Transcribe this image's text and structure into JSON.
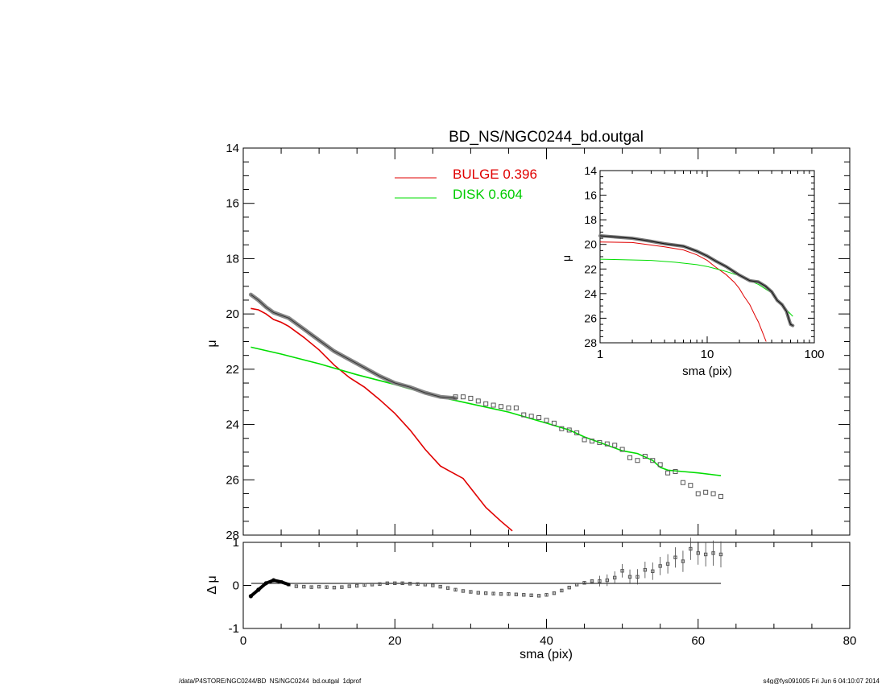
{
  "title": "BD_NS/NGC0244_bd.outgal",
  "footer_left": "/data/P4STORE/NGC0244/BD_NS/NGC0244_bd.outgal_1dprof",
  "footer_right": "s4g@fys091005  Fri Jun  6 04:10:07 2014",
  "legend": {
    "bulge_label": "BULGE  0.396",
    "disk_label": "DISK  0.604"
  },
  "colors": {
    "bulge": "#e00000",
    "disk": "#00dd00",
    "data": "#555555",
    "axes": "#000000"
  },
  "chart_data": [
    {
      "panel": "main",
      "type": "line",
      "title": "BD_NS/NGC0244_bd.outgal",
      "xlabel": "",
      "ylabel": "μ",
      "xlim": [
        0,
        80
      ],
      "ylim": [
        28,
        14
      ],
      "yticks": [
        14,
        16,
        18,
        20,
        22,
        24,
        26,
        28
      ],
      "series": [
        {
          "name": "BULGE  0.396",
          "role": "bulge",
          "x": [
            1,
            2,
            3,
            4,
            5,
            6,
            8,
            10,
            12,
            14,
            16,
            18,
            20,
            22,
            24,
            26,
            27,
            28,
            29,
            30,
            32,
            34,
            35.5
          ],
          "y": [
            19.8,
            19.85,
            20.0,
            20.2,
            20.3,
            20.45,
            20.85,
            21.3,
            21.85,
            22.3,
            22.65,
            23.1,
            23.6,
            24.2,
            24.9,
            25.5,
            25.65,
            25.8,
            25.95,
            26.3,
            27.0,
            27.5,
            27.85
          ]
        },
        {
          "name": "DISK  0.604",
          "role": "disk",
          "x": [
            1,
            5,
            10,
            15,
            20,
            25,
            30,
            35,
            40,
            43,
            45,
            48,
            50,
            52,
            54,
            55,
            56,
            58,
            60,
            63
          ],
          "y": [
            21.2,
            21.45,
            21.8,
            22.2,
            22.55,
            22.95,
            23.25,
            23.55,
            23.95,
            24.2,
            24.45,
            24.75,
            24.95,
            25.05,
            25.3,
            25.55,
            25.65,
            25.7,
            25.75,
            25.85
          ]
        },
        {
          "name": "",
          "role": "data_line",
          "x": [
            1,
            2,
            3,
            4,
            6,
            8,
            10,
            12,
            14,
            16,
            18,
            20,
            22,
            24,
            26,
            28
          ],
          "y": [
            19.3,
            19.5,
            19.75,
            19.95,
            20.15,
            20.55,
            20.95,
            21.35,
            21.65,
            21.95,
            22.25,
            22.5,
            22.65,
            22.85,
            23.0,
            23.05
          ]
        },
        {
          "name": "",
          "role": "data_points",
          "x": [
            28,
            29,
            30,
            31,
            32,
            33,
            34,
            35,
            36,
            37,
            38,
            39,
            40,
            41,
            42,
            43,
            44,
            45,
            46,
            47,
            48,
            49,
            50,
            51,
            52,
            53,
            54,
            55,
            56,
            57,
            58,
            59,
            60,
            61,
            62,
            63
          ],
          "y": [
            23.0,
            23.0,
            23.05,
            23.15,
            23.25,
            23.3,
            23.35,
            23.4,
            23.4,
            23.65,
            23.7,
            23.75,
            23.85,
            23.95,
            24.15,
            24.2,
            24.3,
            24.55,
            24.6,
            24.65,
            24.7,
            24.75,
            24.9,
            25.2,
            25.3,
            25.15,
            25.3,
            25.45,
            25.75,
            25.7,
            26.1,
            26.2,
            26.5,
            26.45,
            26.5,
            26.6
          ]
        }
      ]
    },
    {
      "panel": "residual",
      "type": "scatter",
      "xlabel": "sma (pix)",
      "ylabel": "Δ μ",
      "xlim": [
        0,
        80
      ],
      "ylim": [
        -1,
        1
      ],
      "xticks": [
        0,
        20,
        40,
        60,
        80
      ],
      "yticks": [
        -1,
        0,
        1
      ],
      "series": [
        {
          "name": "",
          "role": "residual",
          "x": [
            1,
            2,
            3,
            4,
            5,
            6,
            7,
            8,
            9,
            10,
            11,
            12,
            13,
            14,
            15,
            16,
            17,
            18,
            19,
            20,
            21,
            22,
            23,
            24,
            25,
            26,
            27,
            28,
            29,
            30,
            31,
            32,
            33,
            34,
            35,
            36,
            37,
            38,
            39,
            40,
            41,
            42,
            43,
            44,
            45,
            46,
            47,
            48,
            49,
            50,
            51,
            52,
            53,
            54,
            55,
            56,
            57,
            58,
            59,
            60,
            61,
            62,
            63
          ],
          "y": [
            -0.25,
            -0.1,
            0.05,
            0.12,
            0.08,
            0.02,
            -0.02,
            -0.03,
            -0.04,
            -0.03,
            -0.04,
            -0.05,
            -0.04,
            -0.02,
            -0.01,
            0.01,
            0.02,
            0.03,
            0.05,
            0.05,
            0.05,
            0.04,
            0.03,
            0.02,
            0.0,
            -0.03,
            -0.06,
            -0.1,
            -0.13,
            -0.15,
            -0.17,
            -0.18,
            -0.19,
            -0.2,
            -0.2,
            -0.21,
            -0.22,
            -0.23,
            -0.24,
            -0.22,
            -0.18,
            -0.12,
            -0.05,
            0.02,
            0.06,
            0.1,
            0.1,
            0.12,
            0.18,
            0.34,
            0.2,
            0.2,
            0.36,
            0.33,
            0.45,
            0.5,
            0.65,
            0.56,
            0.85,
            0.75,
            0.72,
            0.75,
            0.72
          ]
        }
      ]
    },
    {
      "panel": "inset",
      "type": "line",
      "xlabel": "sma (pix)",
      "ylabel": "μ",
      "xscale": "log",
      "xlim": [
        1,
        100
      ],
      "ylim": [
        28,
        14
      ],
      "xticks": [
        1,
        10,
        100
      ],
      "yticks": [
        14,
        16,
        18,
        20,
        22,
        24,
        26,
        28
      ],
      "series": [
        {
          "name": "",
          "role": "bulge",
          "x": [
            1,
            2,
            4,
            6,
            8,
            10,
            12,
            15,
            18,
            20,
            22,
            25,
            28,
            30,
            33,
            35.5
          ],
          "y": [
            19.8,
            19.85,
            20.2,
            20.45,
            20.85,
            21.3,
            21.85,
            22.45,
            23.1,
            23.6,
            24.2,
            24.9,
            25.8,
            26.3,
            27.2,
            27.9
          ]
        },
        {
          "name": "",
          "role": "disk",
          "x": [
            1,
            3,
            5,
            8,
            10,
            15,
            20,
            25,
            30,
            40,
            50,
            63
          ],
          "y": [
            21.2,
            21.3,
            21.45,
            21.65,
            21.8,
            22.2,
            22.55,
            22.95,
            23.25,
            23.95,
            24.95,
            25.85
          ]
        },
        {
          "name": "",
          "role": "data",
          "x": [
            1,
            2,
            3,
            4,
            6,
            8,
            10,
            12,
            15,
            18,
            20,
            25,
            30,
            35,
            40,
            45,
            50,
            55,
            58,
            60,
            63
          ],
          "y": [
            19.3,
            19.5,
            19.75,
            19.95,
            20.15,
            20.55,
            20.95,
            21.35,
            21.8,
            22.25,
            22.5,
            22.95,
            23.05,
            23.4,
            23.85,
            24.55,
            24.9,
            25.45,
            26.1,
            26.5,
            26.6
          ]
        }
      ]
    }
  ]
}
